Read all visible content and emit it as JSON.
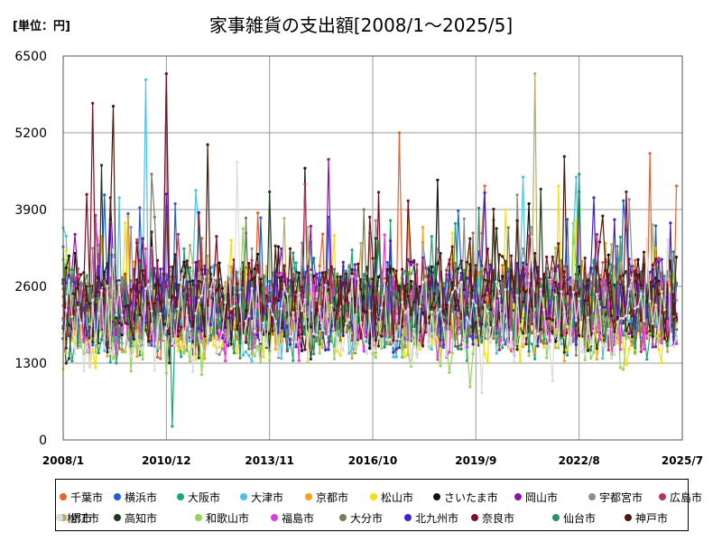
{
  "header": {
    "unit_label": "[単位：円]",
    "title": "家事雑貨の支出額[2008/1～2025/5]"
  },
  "chart_data": {
    "type": "line",
    "title": "家事雑貨の支出額[2008/1～2025/5]",
    "unit": "円",
    "x_start": "2008/1",
    "x_end": "2025/7",
    "x_ticks": [
      "2008/1",
      "2010/12",
      "2013/11",
      "2016/10",
      "2019/9",
      "2022/8",
      "2025/7"
    ],
    "y_ticks": [
      0,
      1300,
      2600,
      3900,
      5200,
      6500
    ],
    "ylim": [
      0,
      6500
    ],
    "grid": true,
    "legend_position": "bottom",
    "series": [
      {
        "name": "千葉市",
        "color": "#e8602c",
        "base": 2150,
        "spikes": [
          [
            2017.5,
            5200
          ],
          [
            2019.9,
            4300
          ],
          [
            2024.6,
            4850
          ],
          [
            2025.3,
            4300
          ]
        ]
      },
      {
        "name": "横浜市",
        "color": "#1f5fd6",
        "base": 2200,
        "spikes": [
          [
            2009.2,
            4150
          ],
          [
            2011.2,
            4000
          ],
          [
            2023.8,
            4050
          ]
        ]
      },
      {
        "name": "大阪市",
        "color": "#18a67a",
        "base": 2050,
        "spikes": [
          [
            2011.1,
            230
          ],
          [
            2013.2,
            3500
          ]
        ]
      },
      {
        "name": "大津市",
        "color": "#4dc0ec",
        "base": 2100,
        "spikes": [
          [
            2009.6,
            4100
          ],
          [
            2010.3,
            6100
          ],
          [
            2021.0,
            4450
          ],
          [
            2022.5,
            4450
          ]
        ]
      },
      {
        "name": "京都市",
        "color": "#f7a11a",
        "base": 2050,
        "spikes": [
          [
            2010.9,
            3950
          ],
          [
            2018.2,
            3600
          ]
        ]
      },
      {
        "name": "松山市",
        "color": "#f3e10b",
        "base": 1950,
        "spikes": [
          [
            2022.0,
            4300
          ],
          [
            2020.5,
            3900
          ]
        ]
      },
      {
        "name": "さいたま市",
        "color": "#111111",
        "base": 2250,
        "spikes": [
          [
            2014.8,
            4600
          ],
          [
            2018.6,
            4400
          ],
          [
            2021.2,
            4000
          ]
        ]
      },
      {
        "name": "岡山市",
        "color": "#8d12a8",
        "base": 2200,
        "spikes": [
          [
            2015.5,
            4750
          ],
          [
            2022.6,
            4200
          ]
        ]
      },
      {
        "name": "宇都宮市",
        "color": "#8c8c8c",
        "base": 2150,
        "spikes": [
          [
            2020.8,
            4150
          ],
          [
            2009.9,
            3600
          ]
        ]
      },
      {
        "name": "広島市",
        "color": "#b5345c",
        "base": 2200,
        "spikes": [
          [
            2010.9,
            6200
          ],
          [
            2008.9,
            3800
          ]
        ]
      },
      {
        "name": "堺市",
        "color": "#b8ac64",
        "base": 2100,
        "spikes": [
          [
            2021.3,
            6200
          ],
          [
            2014.9,
            3600
          ]
        ]
      },
      {
        "name": "高知市",
        "color": "#1c3a1c",
        "base": 2100,
        "spikes": [
          [
            2009.1,
            4650
          ],
          [
            2013.8,
            4200
          ]
        ]
      },
      {
        "name": "和歌山市",
        "color": "#98d45c",
        "base": 1850,
        "spikes": [
          [
            2019.5,
            900
          ]
        ]
      },
      {
        "name": "福島市",
        "color": "#e53ad6",
        "base": 2050,
        "spikes": [
          [
            2009.0,
            3300
          ]
        ]
      },
      {
        "name": "大分市",
        "color": "#7f7a5c",
        "base": 2150,
        "spikes": [
          [
            2010.5,
            4500
          ],
          [
            2016.5,
            3900
          ]
        ]
      },
      {
        "name": "北九州市",
        "color": "#4024c8",
        "base": 2200,
        "spikes": [
          [
            2009.3,
            4100
          ],
          [
            2023.0,
            4100
          ]
        ]
      },
      {
        "name": "奈良市",
        "color": "#7a1024",
        "base": 2300,
        "spikes": [
          [
            2008.8,
            5700
          ],
          [
            2010.9,
            6200
          ],
          [
            2023.9,
            4200
          ]
        ]
      },
      {
        "name": "仙台市",
        "color": "#2e8f60",
        "base": 2100,
        "spikes": [
          [
            2022.6,
            4500
          ]
        ]
      },
      {
        "name": "神戸市",
        "color": "#4a1a0a",
        "base": 2250,
        "spikes": [
          [
            2009.4,
            5650
          ],
          [
            2012.1,
            5000
          ],
          [
            2022.2,
            4800
          ]
        ]
      },
      {
        "name": "松江市",
        "color": "#dcdcdc",
        "base": 1900,
        "spikes": [
          [
            2012.9,
            4700
          ],
          [
            2019.8,
            800
          ],
          [
            2021.8,
            1000
          ]
        ]
      }
    ]
  }
}
